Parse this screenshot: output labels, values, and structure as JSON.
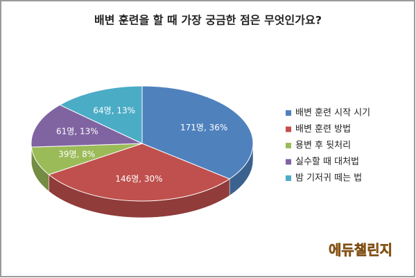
{
  "chart_data": {
    "type": "pie3d",
    "title": "배변 훈련을 할 때 가장 궁금한 점은 무엇인가요?",
    "categories": [
      "배변 훈련 시작 시기",
      "배변 훈련 방법",
      "용변 후 뒷처리",
      "실수할 때 대처법",
      "밤 기저귀 떼는 법"
    ],
    "values": [
      171,
      146,
      39,
      61,
      64
    ],
    "value_labels": [
      "171명, 36%",
      "146명, 30%",
      "39명, 8%",
      "61명, 13%",
      "64명, 13%"
    ],
    "colors": [
      "#4f81bd",
      "#c0504d",
      "#9bbb59",
      "#8064a2",
      "#4bacc6"
    ],
    "legend": "right"
  },
  "logo": "에듀챌린지"
}
